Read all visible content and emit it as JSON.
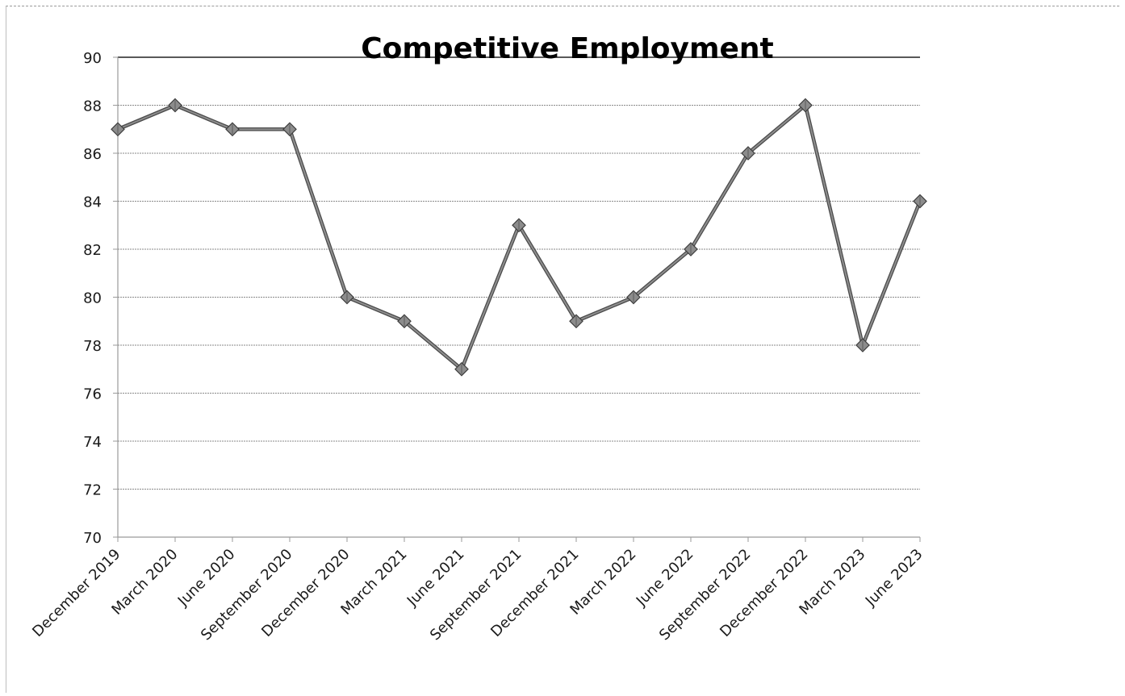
{
  "chart_data": {
    "type": "line",
    "title": "Competitive Employment",
    "xlabel": "",
    "ylabel": "",
    "categories": [
      "December 2019",
      "March 2020",
      "June 2020",
      "September 2020",
      "December 2020",
      "March 2021",
      "June 2021",
      "September 2021",
      "December 2021",
      "March 2022",
      "June 2022",
      "September 2022",
      "December 2022",
      "March 2023",
      "June 2023"
    ],
    "values": [
      87,
      88,
      87,
      87,
      80,
      79,
      77,
      83,
      79,
      80,
      82,
      86,
      88,
      78,
      84
    ],
    "ylim": [
      70,
      90
    ],
    "yticks": [
      "70",
      "72",
      "74",
      "76",
      "78",
      "80",
      "82",
      "84",
      "86",
      "88",
      "90"
    ],
    "grid": true,
    "legend": "none",
    "colors": {
      "line": "#6e6e6e",
      "marker": "#8c8c8c",
      "grid": "#8a8a8a",
      "axis": "#9a9a9a"
    }
  }
}
